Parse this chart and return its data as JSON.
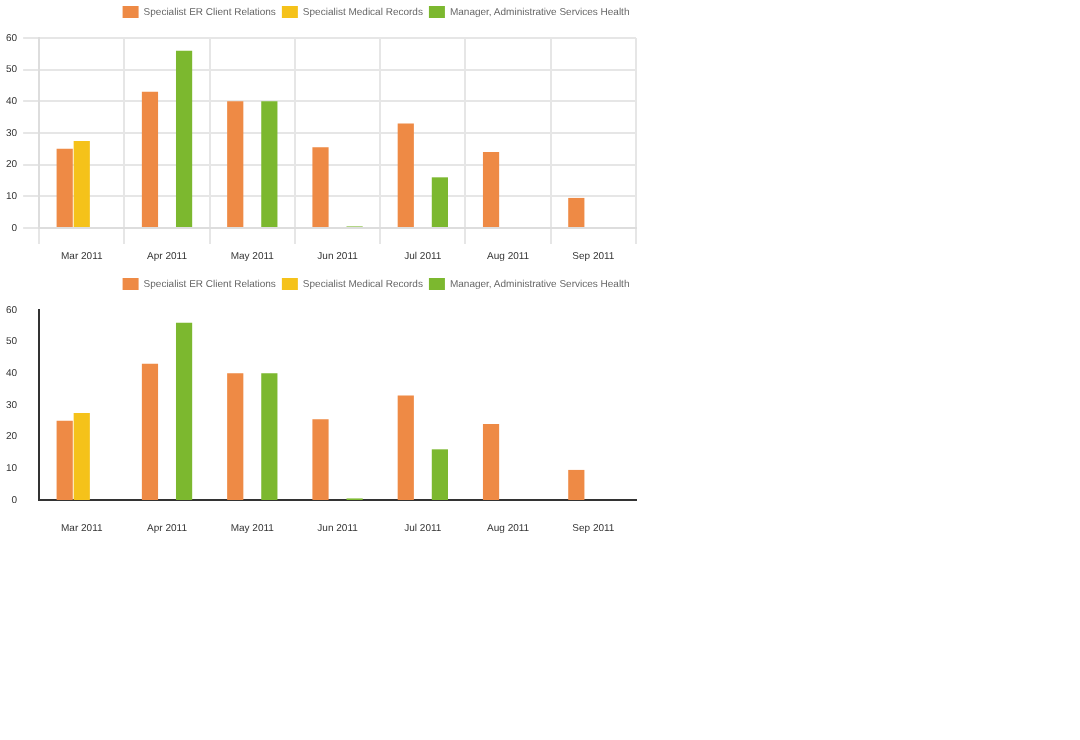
{
  "chart_data": [
    {
      "type": "bar",
      "categories": [
        "Mar 2011",
        "Apr 2011",
        "May 2011",
        "Jun 2011",
        "Jul 2011",
        "Aug 2011",
        "Sep 2011"
      ],
      "ylim": [
        0,
        60
      ],
      "yticks": [
        0,
        10,
        20,
        30,
        40,
        50,
        60
      ],
      "grid": true,
      "legend": "top right",
      "series": [
        {
          "name": "Specialist ER Client Relations",
          "color": "#ee8a45",
          "values": [
            25,
            43,
            40,
            25.5,
            33,
            24,
            9.5
          ]
        },
        {
          "name": "Specialist Medical Records",
          "color": "#f5c21a",
          "values": [
            27.5,
            null,
            null,
            null,
            null,
            null,
            null
          ]
        },
        {
          "name": "Manager, Administrative Services Health",
          "color": "#7cb82f",
          "values": [
            null,
            56,
            40,
            0.5,
            16,
            null,
            null
          ]
        }
      ]
    },
    {
      "type": "bar",
      "categories": [
        "Mar 2011",
        "Apr 2011",
        "May 2011",
        "Jun 2011",
        "Jul 2011",
        "Aug 2011",
        "Sep 2011"
      ],
      "ylim": [
        0,
        60
      ],
      "yticks": [
        0,
        10,
        20,
        30,
        40,
        50,
        60
      ],
      "grid": false,
      "legend": "top right",
      "series": [
        {
          "name": "Specialist ER Client Relations",
          "color": "#ee8a45",
          "values": [
            25,
            43,
            40,
            25.5,
            33,
            24,
            9.5
          ]
        },
        {
          "name": "Specialist Medical Records",
          "color": "#f5c21a",
          "values": [
            27.5,
            null,
            null,
            null,
            null,
            null,
            null
          ]
        },
        {
          "name": "Manager, Administrative Services Health",
          "color": "#7cb82f",
          "values": [
            null,
            56,
            40,
            0.5,
            16,
            null,
            null
          ]
        }
      ]
    }
  ]
}
